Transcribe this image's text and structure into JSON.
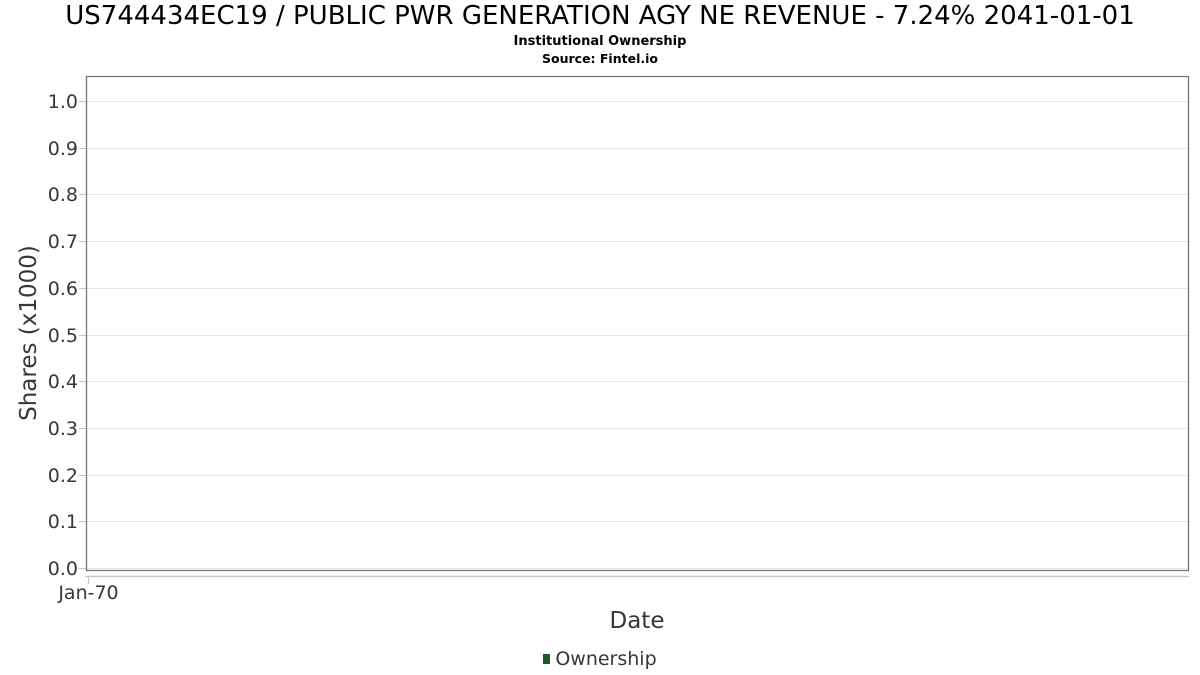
{
  "chart_data": {
    "type": "line",
    "title": "US744434EC19 / PUBLIC PWR GENERATION AGY NE REVENUE - 7.24% 2041-01-01",
    "subtitle": "Institutional Ownership",
    "source": "Source: Fintel.io",
    "xlabel": "Date",
    "ylabel": "Shares (x1000)",
    "x_ticks": [
      "Jan-70"
    ],
    "y_ticks": [
      "0.0",
      "0.1",
      "0.2",
      "0.3",
      "0.4",
      "0.5",
      "0.6",
      "0.7",
      "0.8",
      "0.9",
      "1.0"
    ],
    "ylim": [
      0,
      1.06
    ],
    "grid": true,
    "legend_position": "bottom",
    "series": [
      {
        "name": "Ownership",
        "color": "#1e5631",
        "values": []
      }
    ]
  },
  "colors": {
    "title_text": "#000000",
    "tick_label": "#373737",
    "axis_title": "#373737",
    "legend_text": "#373737",
    "plot_border": "#777777",
    "gridline": "#e6e6e6",
    "axis_line": "#c9c9c9"
  }
}
